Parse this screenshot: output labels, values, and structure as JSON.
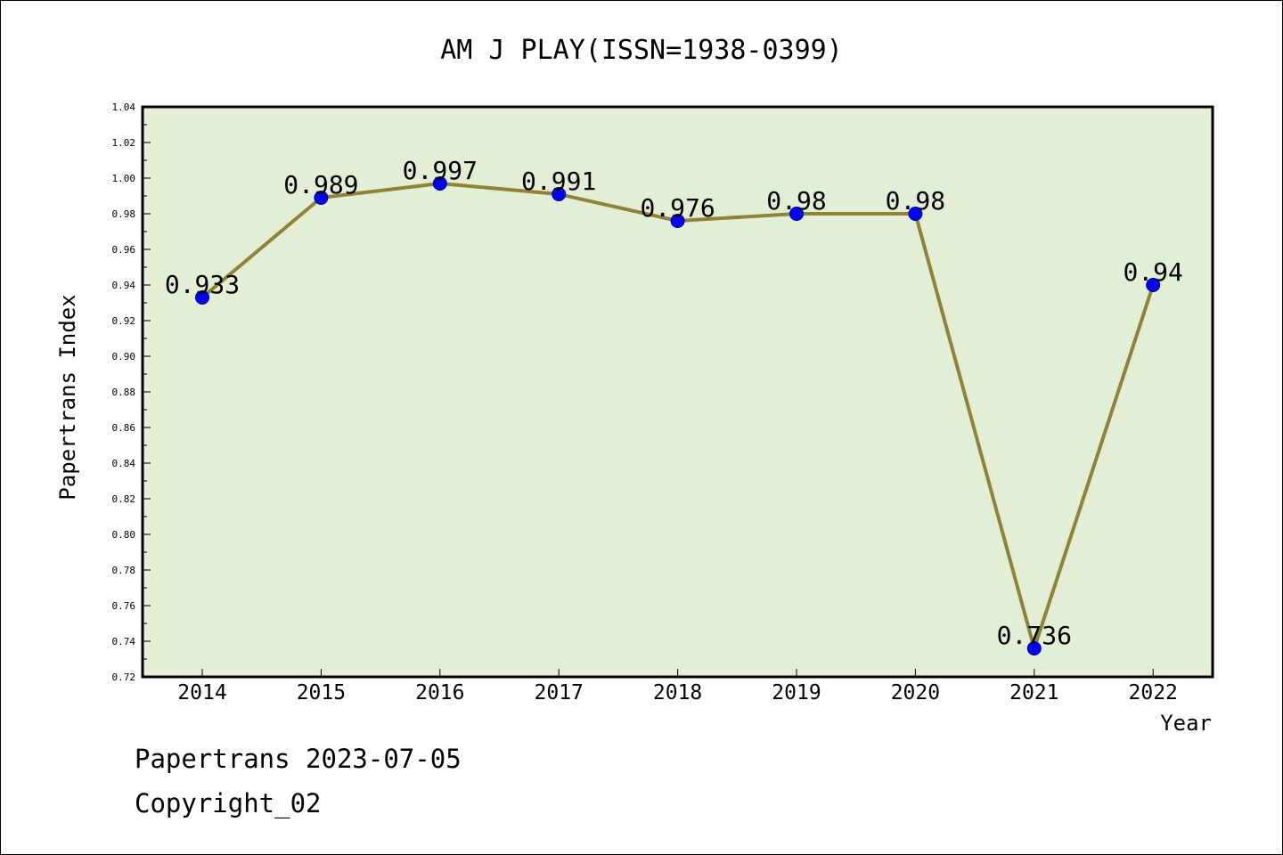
{
  "chart_data": {
    "type": "line",
    "title": "AM J PLAY(ISSN=1938-0399)",
    "xlabel": "Year",
    "ylabel": "Papertrans Index",
    "categories": [
      "2014",
      "2015",
      "2016",
      "2017",
      "2018",
      "2019",
      "2020",
      "2021",
      "2022"
    ],
    "values": [
      0.933,
      0.989,
      0.997,
      0.991,
      0.976,
      0.98,
      0.98,
      0.736,
      0.94
    ],
    "data_labels": [
      "0.933",
      "0.989",
      "0.997",
      "0.991",
      "0.976",
      "0.98",
      "0.98",
      "0.736",
      "0.94"
    ],
    "ylim": [
      0.72,
      1.04
    ],
    "y_ticks": [
      "0.72",
      "0.74",
      "0.76",
      "0.78",
      "0.80",
      "0.82",
      "0.84",
      "0.86",
      "0.88",
      "0.90",
      "0.92",
      "0.94",
      "0.96",
      "0.98",
      "1.00",
      "1.02",
      "1.04"
    ],
    "grid": false,
    "colors": {
      "plot_background": "#e2efd5",
      "line": "#8f8338",
      "marker": "#0000ff",
      "marker_edge": "#00008b"
    }
  },
  "footer": {
    "line1": "Papertrans 2023-07-05",
    "line2": "Copyright_02"
  }
}
